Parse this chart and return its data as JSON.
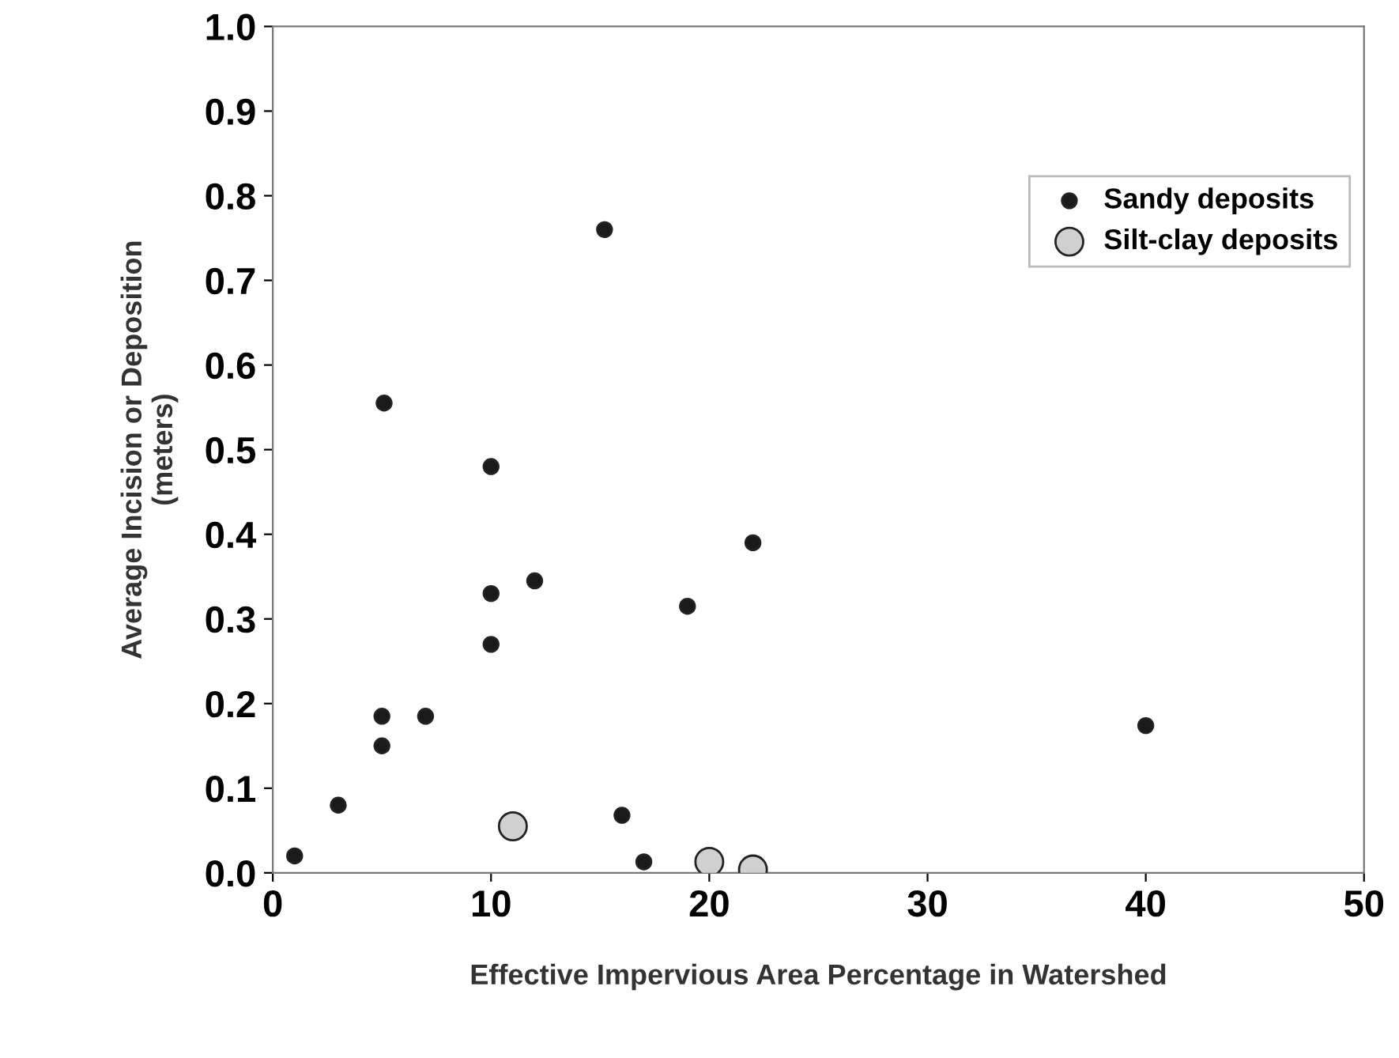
{
  "chart_data": {
    "type": "scatter",
    "xlabel": "Effective Impervious Area Percentage in Watershed",
    "ylabel": "Average Incision or Deposition\n(meters)",
    "xlim": [
      0,
      50
    ],
    "xticks": [
      0,
      10,
      20,
      30,
      40,
      50
    ],
    "ylim": [
      0,
      1.0
    ],
    "yticks": [
      {
        "value": 0,
        "label": "0.0"
      },
      0.1,
      0.2,
      0.3,
      0.4,
      0.5,
      0.6,
      0.7,
      0.8,
      0.9,
      {
        "value": 1,
        "label": "1.0"
      }
    ],
    "grid": false,
    "legend": "top right",
    "marker": "circle",
    "series": [
      {
        "name": "Sandy deposits",
        "color": "#1a1a1a",
        "x": [
          1,
          3,
          5,
          5,
          5.1,
          7,
          10,
          10,
          10,
          12,
          15.2,
          16,
          17,
          19,
          22,
          40
        ],
        "values": [
          0.02,
          0.08,
          0.15,
          0.185,
          0.555,
          0.185,
          0.27,
          0.33,
          0.48,
          0.345,
          0.76,
          0.068,
          0.013,
          0.315,
          0.39,
          0.174
        ]
      },
      {
        "name": "Silt-clay deposits",
        "color": "#d0d0d0",
        "x": [
          11,
          20,
          22
        ],
        "values": [
          0.055,
          0.013,
          0.004
        ]
      }
    ]
  }
}
